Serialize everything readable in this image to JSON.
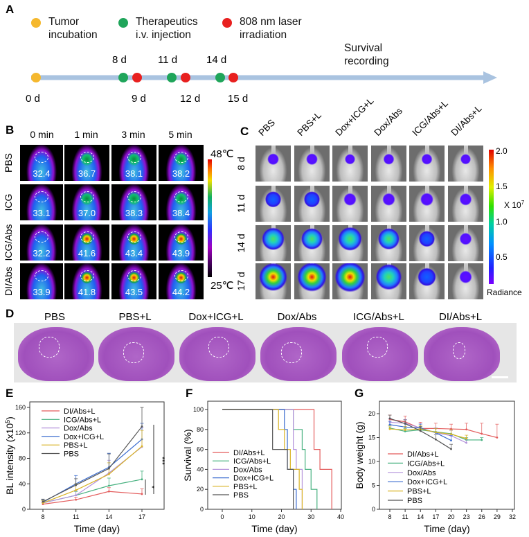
{
  "panel_labels": {
    "a": "A",
    "b": "B",
    "c": "C",
    "d": "D",
    "e": "E",
    "f": "F",
    "g": "G"
  },
  "panelA": {
    "legend": [
      {
        "line1": "Tumor",
        "line2": "incubation",
        "color": "#f5b82e"
      },
      {
        "line1": "Therapeutics",
        "line2": "i.v. injection",
        "color": "#1fa55a"
      },
      {
        "line1": "808 nm laser",
        "line2": "irradiation",
        "color": "#e8201f"
      }
    ],
    "survival_line1": "Survival",
    "survival_line2": "recording",
    "start_label": "0 d",
    "injection_days": [
      "8 d",
      "11 d",
      "14 d"
    ],
    "laser_days": [
      "9 d",
      "12 d",
      "15 d"
    ],
    "arrow_color": "#a9c3e0"
  },
  "panelB": {
    "columns": [
      "0 min",
      "1 min",
      "3 min",
      "5 min"
    ],
    "rows": [
      {
        "label": "PBS",
        "values": [
          "32.4",
          "36.7",
          "38.1",
          "38.2"
        ]
      },
      {
        "label": "ICG",
        "values": [
          "33.1",
          "37.0",
          "38.3",
          "38.4"
        ]
      },
      {
        "label": "ICG/Abs",
        "values": [
          "32.2",
          "41.6",
          "43.4",
          "43.9"
        ]
      },
      {
        "label": "DI/Abs",
        "values": [
          "33.9",
          "41.8",
          "43.5",
          "44.2"
        ]
      }
    ],
    "scale_max": "48℃",
    "scale_min": "25℃"
  },
  "panelC": {
    "columns": [
      "PBS",
      "PBS+L",
      "Dox+ICG+L",
      "Dox/Abs",
      "ICG/Abs+L",
      "DI/Abs+L"
    ],
    "rows": [
      {
        "label": "8 d",
        "signal": [
          0.15,
          0.15,
          0.1,
          0.12,
          0.12,
          0.1
        ]
      },
      {
        "label": "11 d",
        "signal": [
          0.35,
          0.35,
          0.2,
          0.2,
          0.22,
          0.18
        ]
      },
      {
        "label": "14 d",
        "signal": [
          0.65,
          0.6,
          0.7,
          0.6,
          0.35,
          0.18
        ]
      },
      {
        "label": "17 d",
        "signal": [
          0.9,
          0.95,
          1.0,
          0.8,
          0.45,
          0.2
        ]
      }
    ],
    "scale_ticks": [
      "2.0",
      "1.5",
      "1.0",
      "0.5"
    ],
    "scale_unit": "X 10",
    "scale_exp": "7",
    "scale_title": "Radiance"
  },
  "panelD": {
    "columns": [
      "PBS",
      "PBS+L",
      "Dox+ICG+L",
      "Dox/Abs",
      "ICG/Abs+L",
      "DI/Abs+L"
    ]
  },
  "chart_data": [
    {
      "panel": "E",
      "type": "line",
      "xlabel": "Time (day)",
      "ylabel": "BL intensity (x10",
      "ylabel_exp": "5",
      "ylabel_end": ")",
      "x": [
        8,
        11,
        14,
        17
      ],
      "xticks": [
        "8",
        "11",
        "14",
        "17"
      ],
      "yticks": [
        "0",
        "40",
        "80",
        "120",
        "160"
      ],
      "ylim": [
        0,
        160
      ],
      "xlim": [
        6.5,
        19.5
      ],
      "series": [
        {
          "name": "DI/Abs+L",
          "color": "#e35b5b",
          "values": [
            8,
            15,
            28,
            24
          ],
          "err": [
            3,
            4,
            6,
            8
          ]
        },
        {
          "name": "ICG/Abs+L",
          "color": "#45b07e",
          "values": [
            10,
            22,
            37,
            47
          ],
          "err": [
            4,
            6,
            12,
            13
          ]
        },
        {
          "name": "Dox/Abs",
          "color": "#b493db",
          "values": [
            10,
            22,
            57,
            98
          ],
          "err": [
            4,
            8,
            20,
            30
          ]
        },
        {
          "name": "Dox+ICG+L",
          "color": "#3a6bcf",
          "values": [
            11,
            40,
            66,
            110
          ],
          "err": [
            4,
            13,
            22,
            25
          ]
        },
        {
          "name": "PBS+L",
          "color": "#d9b324",
          "values": [
            10,
            30,
            55,
            99
          ],
          "err": [
            4,
            10,
            18,
            25
          ]
        },
        {
          "name": "PBS",
          "color": "#555555",
          "values": [
            12,
            38,
            64,
            130
          ],
          "err": [
            4,
            10,
            23,
            30
          ]
        }
      ],
      "annotations": [
        "***",
        "*"
      ]
    },
    {
      "panel": "F",
      "type": "line",
      "xlabel": "Time (day)",
      "ylabel": "Survival (%)",
      "xticks": [
        "0",
        "10",
        "20",
        "30",
        "40"
      ],
      "yticks": [
        "0",
        "20",
        "40",
        "60",
        "80",
        "100"
      ],
      "xlim": [
        -5,
        40
      ],
      "ylim": [
        0,
        108
      ],
      "series": [
        {
          "name": "DI/Abs+L",
          "color": "#e35b5b",
          "steps": [
            [
              0,
              100
            ],
            [
              31,
              60
            ],
            [
              33,
              40
            ],
            [
              37,
              0
            ]
          ]
        },
        {
          "name": "ICG/Abs+L",
          "color": "#45b07e",
          "steps": [
            [
              0,
              100
            ],
            [
              24,
              80
            ],
            [
              27,
              60
            ],
            [
              28,
              40
            ],
            [
              30,
              20
            ],
            [
              32,
              0
            ]
          ]
        },
        {
          "name": "Dox/Abs",
          "color": "#b493db",
          "steps": [
            [
              0,
              100
            ],
            [
              24,
              60
            ],
            [
              25,
              40
            ],
            [
              27,
              0
            ]
          ]
        },
        {
          "name": "Dox+ICG+L",
          "color": "#3a6bcf",
          "steps": [
            [
              0,
              100
            ],
            [
              21,
              80
            ],
            [
              22,
              40
            ],
            [
              24,
              20
            ],
            [
              25,
              0
            ]
          ]
        },
        {
          "name": "PBS+L",
          "color": "#d9b324",
          "steps": [
            [
              0,
              100
            ],
            [
              19,
              80
            ],
            [
              21,
              60
            ],
            [
              23,
              40
            ],
            [
              26,
              20
            ],
            [
              27,
              0
            ]
          ]
        },
        {
          "name": "PBS",
          "color": "#555555",
          "steps": [
            [
              0,
              100
            ],
            [
              17,
              60
            ],
            [
              22,
              40
            ],
            [
              24,
              0
            ]
          ]
        }
      ]
    },
    {
      "panel": "G",
      "type": "line",
      "xlabel": "Time (day)",
      "ylabel": "Body weight (g)",
      "xticks": [
        "8",
        "11",
        "14",
        "17",
        "20",
        "23",
        "26",
        "29",
        "32"
      ],
      "yticks": [
        "0",
        "5",
        "10",
        "15",
        "20"
      ],
      "xlim": [
        6,
        32
      ],
      "ylim": [
        0,
        22
      ],
      "series": [
        {
          "name": "DI/Abs+L",
          "color": "#e35b5b",
          "x": [
            8,
            11,
            14,
            17,
            20,
            23,
            26,
            29
          ],
          "values": [
            18.8,
            18.3,
            16.9,
            16.9,
            16.8,
            16.7,
            15.8,
            15.0
          ],
          "err": [
            0.9,
            1.2,
            1.3,
            1.1,
            1.0,
            1.3,
            2.2,
            2.8
          ]
        },
        {
          "name": "ICG/Abs+L",
          "color": "#45b07e",
          "x": [
            8,
            11,
            14,
            17,
            20,
            23,
            26
          ],
          "values": [
            17.0,
            16.3,
            16.6,
            16.2,
            15.8,
            14.5,
            14.5
          ],
          "err": [
            0.6,
            0.6,
            0.6,
            0.8,
            0.8,
            0.5,
            0.5
          ]
        },
        {
          "name": "Dox/Abs",
          "color": "#b493db",
          "x": [
            8,
            11,
            14,
            17,
            20,
            23
          ],
          "values": [
            18.2,
            18.0,
            17.0,
            16.0,
            15.4,
            13.9
          ],
          "err": [
            0.8,
            0.8,
            0.9,
            1.0,
            1.1,
            0.8
          ]
        },
        {
          "name": "Dox+ICG+L",
          "color": "#3a6bcf",
          "x": [
            8,
            11,
            14,
            17,
            20
          ],
          "values": [
            17.7,
            17.2,
            17.0,
            16.0,
            14.4
          ],
          "err": [
            0.7,
            0.8,
            0.8,
            0.9,
            1.0
          ]
        },
        {
          "name": "PBS+L",
          "color": "#d9b324",
          "x": [
            8,
            11,
            14,
            17,
            20,
            23
          ],
          "values": [
            16.8,
            16.6,
            16.8,
            16.1,
            15.7,
            14.8
          ],
          "err": [
            0.6,
            0.7,
            0.7,
            0.8,
            0.9,
            0.7
          ]
        },
        {
          "name": "PBS",
          "color": "#555555",
          "x": [
            8,
            11,
            14,
            17,
            20
          ],
          "values": [
            19.0,
            17.9,
            16.4,
            14.6,
            12.6
          ],
          "err": [
            0.7,
            0.8,
            0.9,
            1.0,
            1.0
          ]
        }
      ]
    }
  ]
}
